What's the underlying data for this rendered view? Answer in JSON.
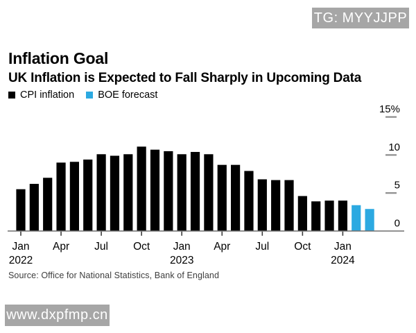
{
  "watermarks": {
    "top_right": "TG: MYYJJPP",
    "bottom_left": "www.dxpfmp.cn"
  },
  "header": {
    "title": "Inflation Goal",
    "subtitle": "UK Inflation is Expected to Fall Sharply in Upcoming Data"
  },
  "legend": {
    "items": [
      {
        "label": "CPI inflation",
        "color": "#000000"
      },
      {
        "label": "BOE forecast",
        "color": "#2ca9e1"
      }
    ]
  },
  "source_note": "Source: Office for National Statistics, Bank of England",
  "chart_data": {
    "type": "bar",
    "title": "Inflation Goal",
    "subtitle": "UK Inflation is Expected to Fall Sharply in Upcoming Data",
    "unit": "%",
    "ylim": [
      0,
      15
    ],
    "grid": false,
    "legend_position": "top-left",
    "y_axis": {
      "side": "right",
      "ticks": [
        {
          "value": 0,
          "label": "0"
        },
        {
          "value": 5,
          "label": "5"
        },
        {
          "value": 10,
          "label": "10"
        },
        {
          "value": 15,
          "label": "15%"
        }
      ]
    },
    "x_axis": {
      "ticks": [
        {
          "index": 0,
          "lines": [
            "Jan",
            "2022"
          ]
        },
        {
          "index": 3,
          "lines": [
            "Apr"
          ]
        },
        {
          "index": 6,
          "lines": [
            "Jul"
          ]
        },
        {
          "index": 9,
          "lines": [
            "Oct"
          ]
        },
        {
          "index": 12,
          "lines": [
            "Jan",
            "2023"
          ]
        },
        {
          "index": 15,
          "lines": [
            "Apr"
          ]
        },
        {
          "index": 18,
          "lines": [
            "Jul"
          ]
        },
        {
          "index": 21,
          "lines": [
            "Oct"
          ]
        },
        {
          "index": 24,
          "lines": [
            "Jan",
            "2024"
          ]
        }
      ]
    },
    "series": [
      {
        "name": "CPI inflation",
        "color": "#000000",
        "months": [
          "Jan 2022",
          "Feb 2022",
          "Mar 2022",
          "Apr 2022",
          "May 2022",
          "Jun 2022",
          "Jul 2022",
          "Aug 2022",
          "Sep 2022",
          "Oct 2022",
          "Nov 2022",
          "Dec 2022",
          "Jan 2023",
          "Feb 2023",
          "Mar 2023",
          "Apr 2023",
          "May 2023",
          "Jun 2023",
          "Jul 2023",
          "Aug 2023",
          "Sep 2023",
          "Oct 2023",
          "Nov 2023",
          "Dec 2023",
          "Jan 2024"
        ],
        "values": [
          5.5,
          6.2,
          7.0,
          9.0,
          9.1,
          9.4,
          10.1,
          9.9,
          10.1,
          11.1,
          10.7,
          10.5,
          10.1,
          10.4,
          10.1,
          8.7,
          8.7,
          7.9,
          6.8,
          6.7,
          6.7,
          4.6,
          3.9,
          4.0,
          4.0
        ]
      },
      {
        "name": "BOE forecast",
        "color": "#2ca9e1",
        "months": [
          "Feb 2024",
          "Mar 2024"
        ],
        "values": [
          3.4,
          2.9
        ]
      }
    ]
  }
}
